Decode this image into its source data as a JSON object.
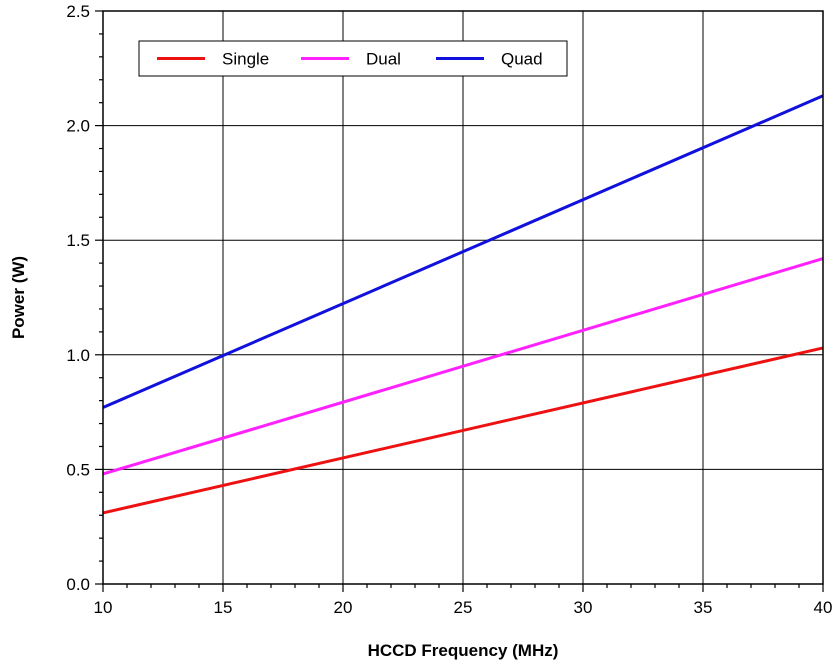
{
  "chart_data": {
    "type": "line",
    "title": "",
    "xlabel": "HCCD Frequency (MHz)",
    "ylabel": "Power (W)",
    "xlim": [
      10,
      40
    ],
    "ylim": [
      0,
      2.5
    ],
    "x_ticks": [
      10,
      15,
      20,
      25,
      30,
      35,
      40
    ],
    "x_tick_labels": [
      "10",
      "15",
      "20",
      "25",
      "30",
      "35",
      "40"
    ],
    "y_ticks": [
      0,
      0.5,
      1.0,
      1.5,
      2.0,
      2.5
    ],
    "y_tick_labels": [
      "0.0",
      "0.5",
      "1.0",
      "1.5",
      "2.0",
      "2.5"
    ],
    "grid": true,
    "legend_position": "top-left",
    "series": [
      {
        "name": "Single",
        "color": "#ee1111",
        "x": [
          10,
          40
        ],
        "y": [
          0.31,
          1.03
        ]
      },
      {
        "name": "Dual",
        "color": "#ff22ff",
        "x": [
          10,
          40
        ],
        "y": [
          0.48,
          1.42
        ]
      },
      {
        "name": "Quad",
        "color": "#1111dd",
        "x": [
          10,
          40
        ],
        "y": [
          0.77,
          2.13
        ]
      }
    ]
  }
}
